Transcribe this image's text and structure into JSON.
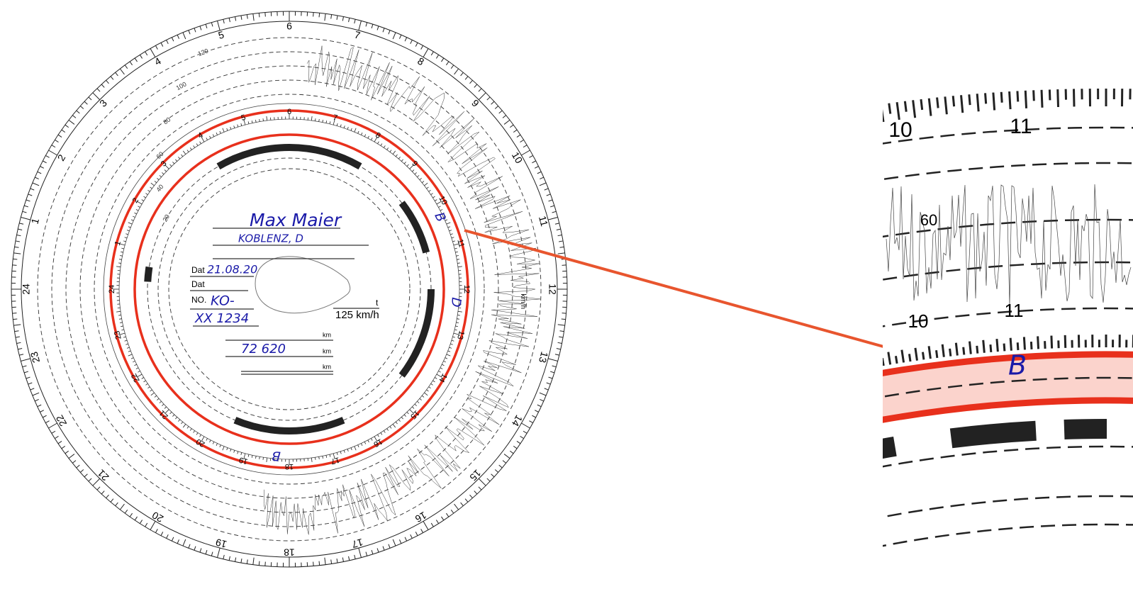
{
  "disc": {
    "hours": [
      "1",
      "2",
      "3",
      "4",
      "5",
      "6",
      "7",
      "8",
      "9",
      "10",
      "11",
      "12",
      "13",
      "14",
      "15",
      "16",
      "17",
      "18",
      "19",
      "20",
      "21",
      "22",
      "23",
      "24"
    ],
    "speed_labels": [
      "20",
      "40",
      "60",
      "80",
      "100",
      "120"
    ],
    "speed_unit": "km/h",
    "form": {
      "name": "Max Maier",
      "place": "KOBLENZ, D",
      "date_label": "Dat",
      "date": "21.08.20",
      "date2_label": "Dat",
      "no_label": "NO.",
      "no_1": "KO-",
      "no_2": "XX 1234",
      "t": "t",
      "max_speed": "125 km/h",
      "km": "km",
      "km_end": "72 620"
    },
    "marks": [
      "B",
      "D",
      "B"
    ]
  },
  "zoom": {
    "hours": [
      "10",
      "11"
    ],
    "speed": "60",
    "mark": "B"
  }
}
